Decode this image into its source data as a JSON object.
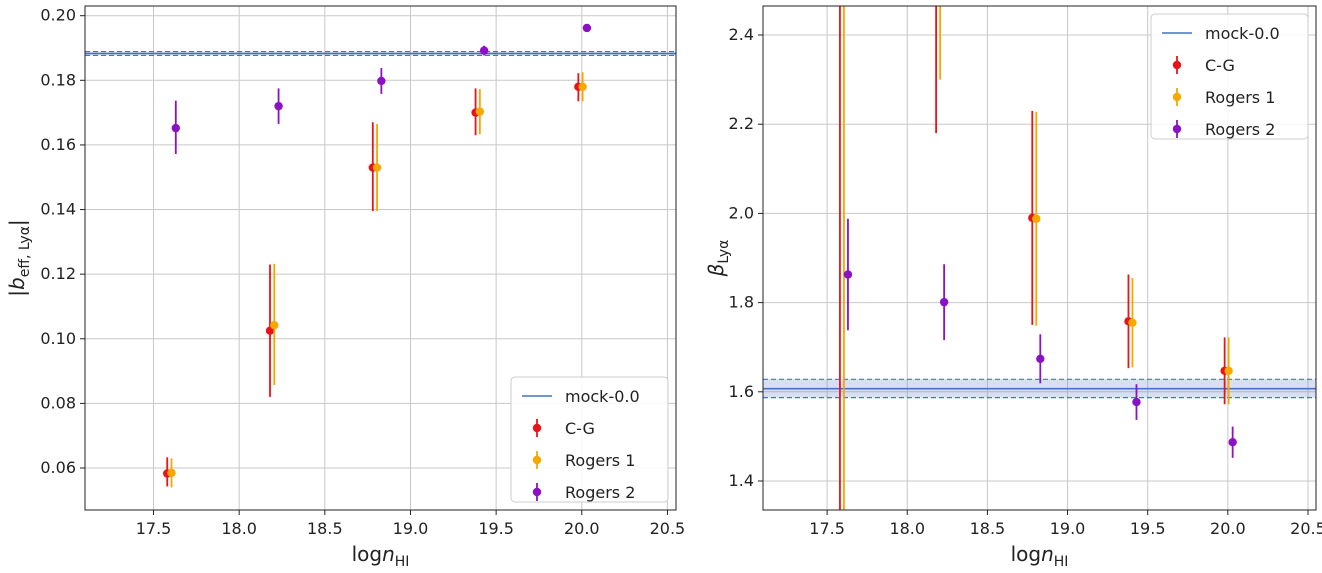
{
  "chart_data": [
    {
      "type": "scatter",
      "title": "",
      "xlabel_main": "log",
      "xlabel_italic": "n",
      "xlabel_sub": "HI",
      "ylabel_main": "|b",
      "ylabel_sub": "eff, Lyα",
      "ylabel_close": "|",
      "xlim": [
        17.1,
        20.55
      ],
      "ylim": [
        0.047,
        0.203
      ],
      "xticks": [
        17.5,
        18.0,
        18.5,
        19.0,
        19.5,
        20.0,
        20.5
      ],
      "xtick_labels": [
        "17.5",
        "18.0",
        "18.5",
        "19.0",
        "19.5",
        "20.0",
        "20.5"
      ],
      "yticks": [
        0.06,
        0.08,
        0.1,
        0.12,
        0.14,
        0.16,
        0.18,
        0.2
      ],
      "ytick_labels": [
        "0.06",
        "0.08",
        "0.10",
        "0.12",
        "0.14",
        "0.16",
        "0.18",
        "0.20"
      ],
      "grid": true,
      "legend_position": "lower-right",
      "reference": {
        "name": "mock-0.0",
        "value": 0.1883,
        "band": [
          0.1877,
          0.1889
        ],
        "color": "#4472c4"
      },
      "series": [
        {
          "name": "C-G",
          "color": "#e8141a",
          "x": [
            17.58,
            18.18,
            18.78,
            19.38,
            19.98
          ],
          "y": [
            0.0583,
            0.1025,
            0.153,
            0.17,
            0.178
          ],
          "err_low": [
            0.004,
            0.0205,
            0.0135,
            0.007,
            0.0045
          ],
          "err_high": [
            0.005,
            0.0205,
            0.014,
            0.0075,
            0.0042
          ]
        },
        {
          "name": "Rogers 1",
          "color": "#f5a800",
          "x": [
            17.605,
            18.205,
            18.805,
            19.405,
            20.005
          ],
          "y": [
            0.0585,
            0.1042,
            0.153,
            0.1703,
            0.178
          ],
          "err_low": [
            0.0045,
            0.0185,
            0.0135,
            0.007,
            0.0045
          ],
          "err_high": [
            0.0045,
            0.019,
            0.0135,
            0.007,
            0.0045
          ]
        },
        {
          "name": "Rogers 2",
          "color": "#8a12c4",
          "x": [
            17.63,
            18.23,
            18.83,
            19.43,
            20.03
          ],
          "y": [
            0.1652,
            0.172,
            0.1798,
            0.1892,
            0.1962
          ],
          "err_low": [
            0.008,
            0.0055,
            0.004,
            0.0015,
            0.0012
          ],
          "err_high": [
            0.0085,
            0.0055,
            0.004,
            0.0015,
            0.0012
          ]
        }
      ]
    },
    {
      "type": "scatter",
      "title": "",
      "xlabel_main": "log",
      "xlabel_italic": "n",
      "xlabel_sub": "HI",
      "ylabel_main": "β",
      "ylabel_sub": "Lyα",
      "ylabel_close": "",
      "xlim": [
        17.1,
        20.55
      ],
      "ylim": [
        1.335,
        2.465
      ],
      "xticks": [
        17.5,
        18.0,
        18.5,
        19.0,
        19.5,
        20.0,
        20.5
      ],
      "xtick_labels": [
        "17.5",
        "18.0",
        "18.5",
        "19.0",
        "19.5",
        "20.0",
        "20.5"
      ],
      "yticks": [
        1.4,
        1.6,
        1.8,
        2.0,
        2.2,
        2.4
      ],
      "ytick_labels": [
        "1.4",
        "1.6",
        "1.8",
        "2.0",
        "2.2",
        "2.4"
      ],
      "grid": true,
      "legend_position": "top-right",
      "reference": {
        "name": "mock-0.0",
        "value": 1.607,
        "band": [
          1.587,
          1.628
        ],
        "color": "#4472c4"
      },
      "series": [
        {
          "name": "C-G",
          "color": "#e8141a",
          "x": [
            17.58,
            18.18,
            18.78,
            19.38,
            19.98
          ],
          "y": [
            null,
            null,
            1.99,
            1.758,
            1.647
          ],
          "err_low": [
            null,
            null,
            0.24,
            0.105,
            0.075
          ],
          "err_high": [
            null,
            null,
            0.24,
            0.105,
            0.075
          ],
          "bar_low": [
            1.3,
            2.18,
            1.75,
            1.653,
            1.572
          ],
          "bar_high": [
            2.5,
            2.5,
            2.23,
            1.863,
            1.722
          ]
        },
        {
          "name": "Rogers 1",
          "color": "#f5a800",
          "x": [
            17.605,
            18.205,
            18.805,
            19.405,
            20.005
          ],
          "y": [
            null,
            null,
            1.988,
            1.755,
            1.647
          ],
          "err_low": [
            null,
            null,
            0.24,
            0.1,
            0.075
          ],
          "err_high": [
            null,
            null,
            0.24,
            0.1,
            0.075
          ],
          "bar_low": [
            1.3,
            2.3,
            1.748,
            1.655,
            1.572
          ],
          "bar_high": [
            2.5,
            2.5,
            2.228,
            1.855,
            1.722
          ]
        },
        {
          "name": "Rogers 2",
          "color": "#8a12c4",
          "x": [
            17.63,
            18.23,
            18.83,
            19.43,
            20.03
          ],
          "y": [
            1.863,
            1.801,
            1.674,
            1.577,
            1.487
          ],
          "err_low": [
            0.125,
            0.085,
            0.055,
            0.04,
            0.035
          ],
          "err_high": [
            0.125,
            0.085,
            0.055,
            0.04,
            0.035
          ]
        }
      ]
    }
  ]
}
